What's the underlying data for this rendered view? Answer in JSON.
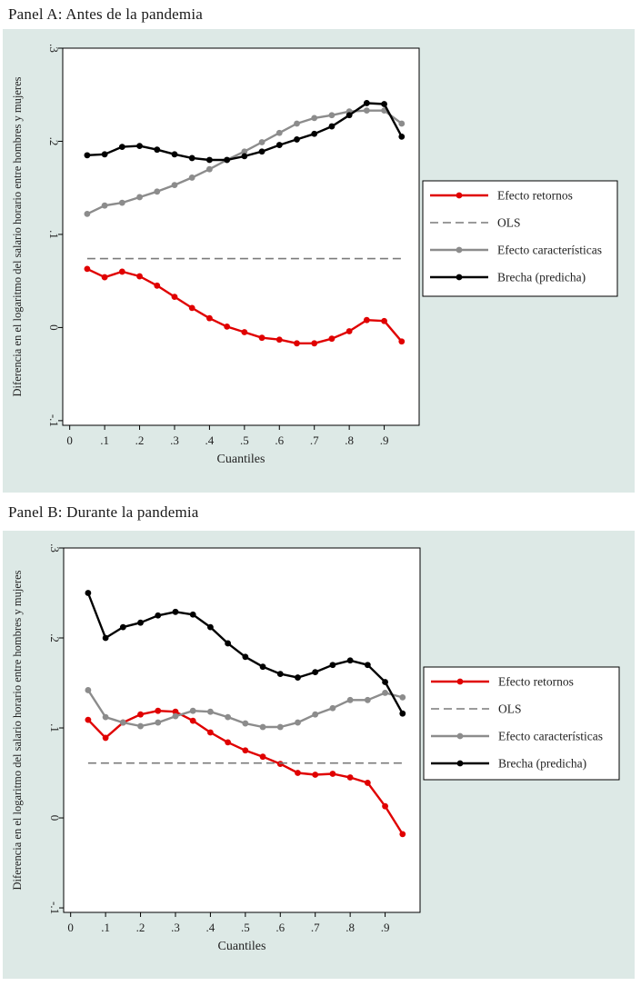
{
  "chart_data": [
    {
      "type": "line",
      "title": "Panel A: Antes de la pandemia",
      "xlabel": "Cuantiles",
      "ylabel": "Diferencia en el logaritmo del salario horario entre hombres y mujeres",
      "xlim": [
        -0.02,
        1.0
      ],
      "ylim": [
        -0.105,
        0.3
      ],
      "xticks": [
        0,
        0.1,
        0.2,
        0.3,
        0.4,
        0.5,
        0.6,
        0.7,
        0.8,
        0.9
      ],
      "xtick_labels": [
        "0",
        ".1",
        ".2",
        ".3",
        ".4",
        ".5",
        ".6",
        ".7",
        ".8",
        ".9"
      ],
      "yticks": [
        -0.1,
        0,
        0.1,
        0.2,
        0.3
      ],
      "ytick_labels": [
        "-.1",
        "0",
        ".1",
        ".2",
        ".3"
      ],
      "grid": false,
      "legend_position": "right",
      "x": [
        0.05,
        0.1,
        0.15,
        0.2,
        0.25,
        0.3,
        0.35,
        0.4,
        0.45,
        0.5,
        0.55,
        0.6,
        0.65,
        0.7,
        0.75,
        0.8,
        0.85,
        0.9,
        0.95
      ],
      "series": [
        {
          "name": "Efecto retornos",
          "color": "#e00000",
          "style": "solid",
          "markers": true,
          "values": [
            0.063,
            0.054,
            0.06,
            0.055,
            0.045,
            0.033,
            0.021,
            0.01,
            0.001,
            -0.005,
            -0.011,
            -0.013,
            -0.017,
            -0.017,
            -0.012,
            -0.004,
            0.008,
            0.007,
            -0.015
          ]
        },
        {
          "name": "OLS",
          "color": "#7a7a7a",
          "style": "dashed",
          "markers": false,
          "values": [
            0.074,
            0.074,
            0.074,
            0.074,
            0.074,
            0.074,
            0.074,
            0.074,
            0.074,
            0.074,
            0.074,
            0.074,
            0.074,
            0.074,
            0.074,
            0.074,
            0.074,
            0.074,
            0.074
          ]
        },
        {
          "name": "Efecto características",
          "color": "#8c8c8c",
          "style": "solid",
          "markers": true,
          "values": [
            0.122,
            0.131,
            0.134,
            0.14,
            0.146,
            0.153,
            0.161,
            0.17,
            0.18,
            0.189,
            0.199,
            0.209,
            0.219,
            0.225,
            0.228,
            0.232,
            0.233,
            0.233,
            0.219
          ]
        },
        {
          "name": "Brecha (predicha)",
          "color": "#000000",
          "style": "solid",
          "markers": true,
          "values": [
            0.185,
            0.186,
            0.194,
            0.195,
            0.191,
            0.186,
            0.182,
            0.18,
            0.18,
            0.184,
            0.189,
            0.196,
            0.202,
            0.208,
            0.216,
            0.228,
            0.241,
            0.24,
            0.205
          ]
        }
      ]
    },
    {
      "type": "line",
      "title": "Panel B: Durante la pandemia",
      "xlabel": "Cuantiles",
      "ylabel": "Diferencia en el logaritmo del salario horario entre hombres y mujeres",
      "xlim": [
        -0.02,
        1.0
      ],
      "ylim": [
        -0.105,
        0.3
      ],
      "xticks": [
        0,
        0.1,
        0.2,
        0.3,
        0.4,
        0.5,
        0.6,
        0.7,
        0.8,
        0.9
      ],
      "xtick_labels": [
        "0",
        ".1",
        ".2",
        ".3",
        ".4",
        ".5",
        ".6",
        ".7",
        ".8",
        ".9"
      ],
      "yticks": [
        -0.1,
        0,
        0.1,
        0.2,
        0.3
      ],
      "ytick_labels": [
        "-.1",
        "0",
        ".1",
        ".2",
        ".3"
      ],
      "grid": false,
      "legend_position": "right",
      "x": [
        0.05,
        0.1,
        0.15,
        0.2,
        0.25,
        0.3,
        0.35,
        0.4,
        0.45,
        0.5,
        0.55,
        0.6,
        0.65,
        0.7,
        0.75,
        0.8,
        0.85,
        0.9,
        0.95
      ],
      "series": [
        {
          "name": "Efecto retornos",
          "color": "#e00000",
          "style": "solid",
          "markers": true,
          "values": [
            0.109,
            0.089,
            0.106,
            0.115,
            0.119,
            0.118,
            0.108,
            0.095,
            0.084,
            0.075,
            0.068,
            0.06,
            0.05,
            0.048,
            0.049,
            0.045,
            0.039,
            0.013,
            -0.018
          ]
        },
        {
          "name": "OLS",
          "color": "#7a7a7a",
          "style": "dashed",
          "markers": false,
          "values": [
            0.061,
            0.061,
            0.061,
            0.061,
            0.061,
            0.061,
            0.061,
            0.061,
            0.061,
            0.061,
            0.061,
            0.061,
            0.061,
            0.061,
            0.061,
            0.061,
            0.061,
            0.061,
            0.061
          ]
        },
        {
          "name": "Efecto características",
          "color": "#8c8c8c",
          "style": "solid",
          "markers": true,
          "values": [
            0.142,
            0.112,
            0.106,
            0.102,
            0.106,
            0.113,
            0.119,
            0.118,
            0.112,
            0.105,
            0.101,
            0.101,
            0.106,
            0.115,
            0.122,
            0.131,
            0.131,
            0.139,
            0.134
          ]
        },
        {
          "name": "Brecha (predicha)",
          "color": "#000000",
          "style": "solid",
          "markers": true,
          "values": [
            0.25,
            0.2,
            0.212,
            0.217,
            0.225,
            0.229,
            0.226,
            0.212,
            0.194,
            0.179,
            0.168,
            0.16,
            0.156,
            0.162,
            0.17,
            0.175,
            0.17,
            0.151,
            0.116
          ]
        }
      ]
    }
  ]
}
